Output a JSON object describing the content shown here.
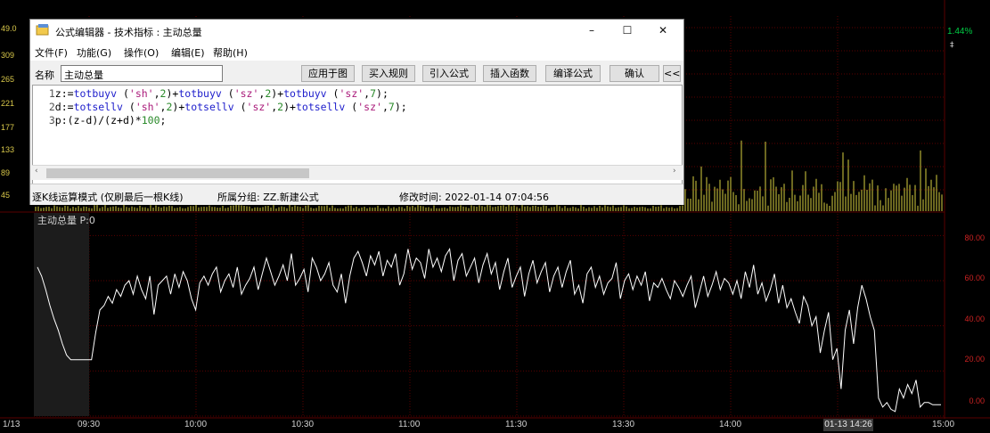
{
  "chart_area": {
    "upper_y_ticks": [
      "49.0",
      "309",
      "265",
      "221",
      "177",
      "133",
      "89",
      "45"
    ],
    "upper_right_value": "1.44%",
    "lower_y_ticks": [
      "80.00",
      "60.00",
      "40.00",
      "20.00",
      "0.00"
    ],
    "lower_y_values": [
      80,
      60,
      40,
      20,
      0
    ],
    "x_labels": [
      "1/13",
      "09:30",
      "10:00",
      "10:30",
      "11:00",
      "11:30",
      "13:30",
      "14:00",
      "15:00"
    ],
    "cursor_date": "01-13 14:26",
    "indicator_label": "主动总量 P:0",
    "right_marker": "‡",
    "colors": {
      "background": "#000000",
      "indicator_line": "#ffffff",
      "volume_bars": "#d8d040",
      "grid": "#5a0000",
      "lower_axis": "#cc2222",
      "up_pct": "#00cc44"
    }
  },
  "chart_data": {
    "type": "line",
    "ylim": [
      0,
      90
    ],
    "y": [
      66,
      62,
      56,
      49,
      43,
      38,
      32,
      27,
      25,
      25,
      25,
      25,
      25,
      25,
      37,
      47,
      49,
      53,
      50,
      56,
      53,
      58,
      60,
      54,
      62,
      56,
      52,
      62,
      45,
      58,
      60,
      62,
      54,
      63,
      57,
      64,
      60,
      52,
      47,
      59,
      62,
      58,
      63,
      66,
      55,
      60,
      63,
      57,
      66,
      54,
      58,
      61,
      66,
      56,
      63,
      70,
      64,
      58,
      62,
      67,
      60,
      72,
      58,
      61,
      65,
      55,
      70,
      66,
      60,
      63,
      68,
      58,
      55,
      63,
      50,
      62,
      70,
      73,
      68,
      62,
      71,
      67,
      73,
      62,
      69,
      66,
      72,
      58,
      63,
      74,
      65,
      70,
      68,
      61,
      74,
      66,
      70,
      64,
      71,
      74,
      60,
      69,
      72,
      62,
      66,
      70,
      59,
      67,
      72,
      63,
      68,
      56,
      64,
      70,
      57,
      62,
      66,
      53,
      63,
      69,
      59,
      64,
      68,
      55,
      62,
      66,
      57,
      64,
      69,
      54,
      58,
      50,
      63,
      66,
      57,
      62,
      54,
      59,
      61,
      68,
      52,
      60,
      63,
      56,
      62,
      58,
      64,
      51,
      59,
      57,
      61,
      56,
      52,
      60,
      57,
      53,
      58,
      62,
      48,
      55,
      62,
      53,
      58,
      64,
      56,
      61,
      59,
      54,
      60,
      52,
      64,
      57,
      67,
      54,
      59,
      51,
      56,
      63,
      50,
      58,
      48,
      52,
      46,
      41,
      53,
      49,
      40,
      44,
      28,
      38,
      46,
      25,
      30,
      12,
      38,
      47,
      32,
      48,
      58,
      52,
      44,
      38,
      8,
      4,
      6,
      3,
      2,
      12,
      8,
      14,
      10,
      16,
      4,
      6,
      6,
      5,
      5,
      5
    ]
  },
  "editor": {
    "window_title": "公式编辑器 - 技术指标 : 主动总量",
    "menus": [
      "文件(F)",
      "功能(G)",
      "操作(O)",
      "编辑(E)",
      "帮助(H)"
    ],
    "name_label": "名称",
    "name_value": "主动总量",
    "buttons": [
      "应用于图",
      "买入规则",
      "引入公式",
      "插入函数",
      "编译公式",
      "确认",
      "<<"
    ],
    "status_mode": "逐K线运算模式 (仅刷最后一根K线)",
    "status_group": "所属分组: ZZ.新建公式",
    "status_time": "修改时间: 2022-01-14 07:04:56",
    "code_lines": [
      "1 z:=totbuyv ('sh',2)+totbuyv ('sz',2)+totbuyv ('sz',7);",
      "2 d:=totsellv ('sh',2)+totsellv ('sz',2)+totsellv ('sz',7);",
      "3 p:(z-d)/(z+d)*100;"
    ]
  }
}
